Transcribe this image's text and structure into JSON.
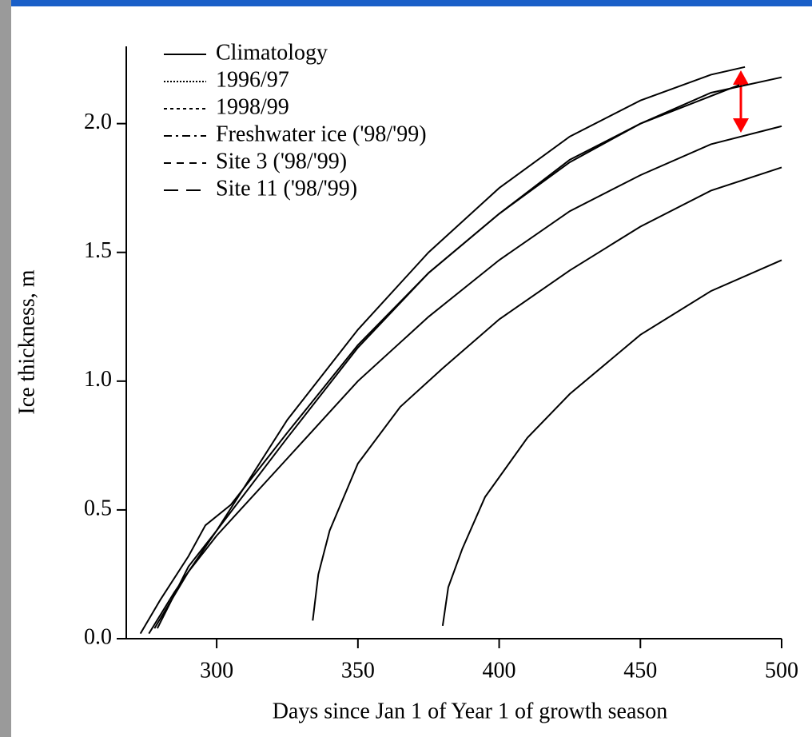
{
  "chart_data": {
    "type": "line",
    "xlabel": "Days since Jan 1 of Year 1 of growth season",
    "ylabel": "Ice thickness, m",
    "xlim": [
      268,
      500
    ],
    "xticks": [
      300,
      350,
      400,
      450,
      500
    ],
    "ylim": [
      0,
      2.3
    ],
    "yticks": [
      {
        "value": 0,
        "label": "0.0"
      },
      0.5,
      {
        "value": 1,
        "label": "1.0"
      },
      1.5,
      {
        "value": 2,
        "label": "2.0"
      }
    ],
    "color": "#000000",
    "legend": "upper left",
    "series": [
      {
        "name": "Climatology",
        "dash": "solid",
        "x": [
          276,
          285,
          300,
          325,
          350,
          375,
          400,
          425,
          450,
          475,
          487
        ],
        "values": [
          0.02,
          0.18,
          0.42,
          0.85,
          1.2,
          1.5,
          1.75,
          1.95,
          2.09,
          2.19,
          2.22
        ]
      },
      {
        "name": "1996/97",
        "dash": "dotted",
        "x": [
          273,
          280,
          290,
          296,
          305,
          325,
          350,
          375,
          400,
          425,
          450,
          475,
          500
        ],
        "values": [
          0.02,
          0.15,
          0.32,
          0.44,
          0.52,
          0.8,
          1.14,
          1.42,
          1.65,
          1.86,
          2.0,
          2.12,
          2.18
        ]
      },
      {
        "name": "1998/99",
        "dash": "short-dash",
        "x": [
          279,
          290,
          300,
          325,
          350,
          375,
          400,
          425,
          450,
          485
        ],
        "values": [
          0.04,
          0.28,
          0.42,
          0.78,
          1.13,
          1.42,
          1.65,
          1.85,
          2.0,
          2.15
        ]
      },
      {
        "name": "Freshwater ice ('98/'99)",
        "dash": "dash-dot",
        "x": [
          278,
          290,
          300,
          325,
          350,
          375,
          400,
          425,
          450,
          475,
          500
        ],
        "values": [
          0.04,
          0.26,
          0.4,
          0.7,
          1.0,
          1.25,
          1.47,
          1.66,
          1.8,
          1.92,
          1.99
        ]
      },
      {
        "name": "Site 3 ('98/'99)",
        "dash": "dash",
        "x": [
          334,
          336,
          340,
          350,
          365,
          380,
          400,
          425,
          450,
          475,
          500
        ],
        "values": [
          0.07,
          0.25,
          0.42,
          0.68,
          0.9,
          1.05,
          1.24,
          1.43,
          1.6,
          1.74,
          1.83
        ]
      },
      {
        "name": "Site 11 ('98/'99)",
        "dash": "long-dash",
        "x": [
          380,
          382,
          387,
          395,
          410,
          425,
          450,
          475,
          500
        ],
        "values": [
          0.05,
          0.2,
          0.35,
          0.55,
          0.78,
          0.95,
          1.18,
          1.35,
          1.47
        ]
      }
    ]
  }
}
